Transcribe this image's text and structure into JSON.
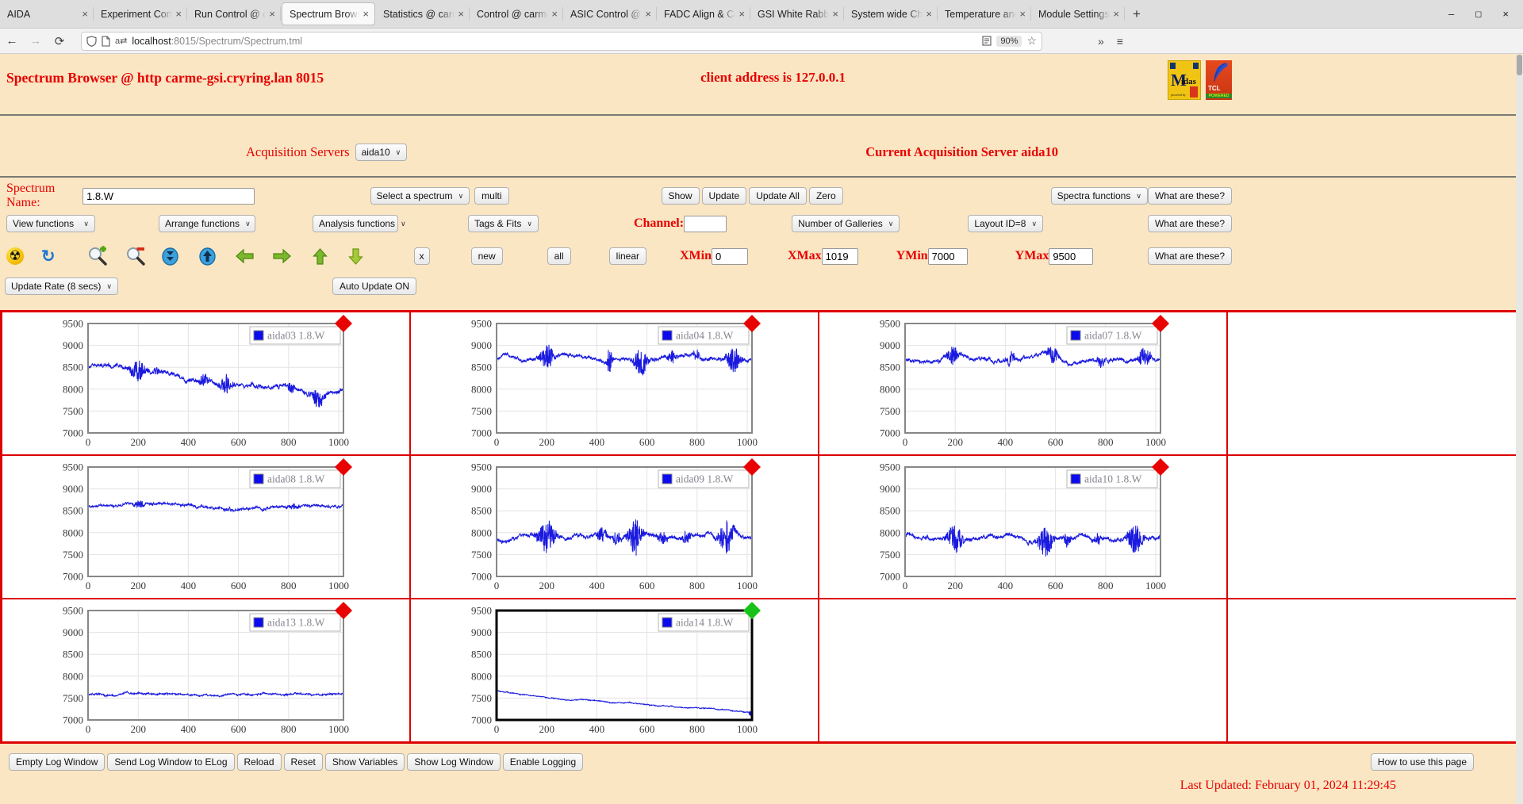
{
  "browser": {
    "tabs": [
      {
        "label": "AIDA",
        "active": false
      },
      {
        "label": "Experiment Cont",
        "active": false
      },
      {
        "label": "Run Control @ c",
        "active": false
      },
      {
        "label": "Spectrum Brows",
        "active": true
      },
      {
        "label": "Statistics @ carm",
        "active": false
      },
      {
        "label": "Control @ carme",
        "active": false
      },
      {
        "label": "ASIC Control @ c",
        "active": false
      },
      {
        "label": "FADC Align & Co",
        "active": false
      },
      {
        "label": "GSI White Rabbit",
        "active": false
      },
      {
        "label": "System wide Che",
        "active": false
      },
      {
        "label": "Temperature and",
        "active": false
      },
      {
        "label": "Module Settings",
        "active": false
      }
    ],
    "url_host": "localhost",
    "url_path": ":8015/Spectrum/Spectrum.tml",
    "zoom_level": "90%"
  },
  "header": {
    "title": "Spectrum Browser @ http carme-gsi.cryring.lan 8015",
    "client": "client address is 127.0.0.1",
    "logos": {
      "midas": "Midas",
      "tcl": "TCL POWERED"
    }
  },
  "server_row": {
    "label": "Acquisition Servers",
    "selected": "aida10",
    "current": "Current Acquisition Server aida10"
  },
  "controls": {
    "spectrum_name_label": "Spectrum Name:",
    "spectrum_name_value": "1.8.W",
    "select_spectrum": "Select a spectrum",
    "multi": "multi",
    "show": "Show",
    "update": "Update",
    "update_all": "Update All",
    "zero": "Zero",
    "spectra_functions": "Spectra functions",
    "what_are_these": "What are these?",
    "view_functions": "View functions",
    "arrange_functions": "Arrange functions",
    "analysis_functions": "Analysis functions",
    "tags_fits": "Tags & Fits",
    "channel_label": "Channel:",
    "channel_value": "",
    "number_of_galleries": "Number of Galleries",
    "layout_id": "Layout ID=8",
    "x_close": "x",
    "new": "new",
    "all": "all",
    "linear": "linear",
    "xmin_label": "XMin",
    "xmin": "0",
    "xmax_label": "XMax",
    "xmax": "1019",
    "ymin_label": "YMin",
    "ymin": "7000",
    "ymax_label": "YMax",
    "ymax": "9500",
    "update_rate": "Update Rate (8 secs)",
    "auto_update": "Auto Update ON"
  },
  "toolbar_icons": [
    "radiation-icon",
    "refresh-icon",
    "zoom-in-icon",
    "zoom-out-icon",
    "compress-y-icon",
    "expand-y-icon",
    "move-left-icon",
    "move-right-icon",
    "move-up-icon",
    "move-down-icon"
  ],
  "footer": {
    "buttons": [
      "Empty Log Window",
      "Send Log Window to ELog",
      "Reload",
      "Reset",
      "Show Variables",
      "Show Log Window",
      "Enable Logging"
    ],
    "help": "How to use this page",
    "last_updated": "Last Updated: February 01, 2024 11:29:45"
  },
  "chart_data": [
    {
      "type": "line",
      "row": 0,
      "col": 0,
      "legend": "aida03 1.8.W",
      "status_marker": "red",
      "selected": false,
      "x_range": [
        0,
        1019
      ],
      "y_range": [
        7000,
        9500
      ],
      "x_ticks": [
        0,
        200,
        400,
        600,
        800,
        1000
      ],
      "y_ticks": [
        7000,
        7500,
        8000,
        8500,
        9000,
        9500
      ],
      "line_color": "#1a1adf",
      "baseline_start": 8490,
      "baseline_end": 7900,
      "noise": 58,
      "power": 1,
      "seed": 31,
      "spikes": [
        {
          "x": 200,
          "w": 30,
          "amp": 230
        },
        {
          "x": 275,
          "w": 12,
          "amp": 120
        },
        {
          "x": 460,
          "w": 16,
          "amp": 170
        },
        {
          "x": 550,
          "w": 22,
          "amp": 210
        },
        {
          "x": 810,
          "w": 14,
          "amp": 140
        },
        {
          "x": 915,
          "w": 30,
          "amp": 190
        }
      ]
    },
    {
      "type": "line",
      "row": 0,
      "col": 1,
      "legend": "aida04 1.8.W",
      "status_marker": "red",
      "selected": false,
      "x_range": [
        0,
        1019
      ],
      "y_range": [
        7000,
        9500
      ],
      "x_ticks": [
        0,
        200,
        400,
        600,
        800,
        1000
      ],
      "y_ticks": [
        7000,
        7500,
        8000,
        8500,
        9000,
        9500
      ],
      "line_color": "#1a1adf",
      "baseline_start": 8700,
      "baseline_end": 8680,
      "noise": 48,
      "power": 1,
      "seed": 42,
      "spikes": [
        {
          "x": 200,
          "w": 26,
          "amp": 290
        },
        {
          "x": 450,
          "w": 10,
          "amp": 340
        },
        {
          "x": 575,
          "w": 26,
          "amp": 310
        },
        {
          "x": 700,
          "w": 16,
          "amp": 140
        },
        {
          "x": 800,
          "w": 14,
          "amp": 130
        },
        {
          "x": 945,
          "w": 26,
          "amp": 300
        }
      ]
    },
    {
      "type": "line",
      "row": 0,
      "col": 2,
      "legend": "aida07 1.8.W",
      "status_marker": "red",
      "selected": false,
      "x_range": [
        0,
        1019
      ],
      "y_range": [
        7000,
        9500
      ],
      "x_ticks": [
        0,
        200,
        400,
        600,
        800,
        1000
      ],
      "y_ticks": [
        7000,
        7500,
        8000,
        8500,
        9000,
        9500
      ],
      "line_color": "#1a1adf",
      "baseline_start": 8680,
      "baseline_end": 8700,
      "noise": 52,
      "power": 1,
      "seed": 77,
      "spikes": [
        {
          "x": 190,
          "w": 22,
          "amp": 210
        },
        {
          "x": 420,
          "w": 16,
          "amp": 180
        },
        {
          "x": 590,
          "w": 20,
          "amp": 210
        },
        {
          "x": 780,
          "w": 14,
          "amp": 150
        },
        {
          "x": 955,
          "w": 24,
          "amp": 220
        }
      ]
    },
    {
      "type": "line",
      "row": 1,
      "col": 0,
      "legend": "aida08 1.8.W",
      "status_marker": "red",
      "selected": false,
      "x_range": [
        0,
        1019
      ],
      "y_range": [
        7000,
        9500
      ],
      "x_ticks": [
        0,
        200,
        400,
        600,
        800,
        1000
      ],
      "y_ticks": [
        7000,
        7500,
        8000,
        8500,
        9000,
        9500
      ],
      "line_color": "#1a1adf",
      "baseline_start": 8600,
      "baseline_end": 8625,
      "noise": 36,
      "power": 1,
      "seed": 88,
      "spikes": [
        {
          "x": 205,
          "w": 24,
          "amp": 90
        },
        {
          "x": 560,
          "w": 16,
          "amp": 55
        },
        {
          "x": 820,
          "w": 20,
          "amp": 70
        }
      ]
    },
    {
      "type": "line",
      "row": 1,
      "col": 1,
      "legend": "aida09 1.8.W",
      "status_marker": "red",
      "selected": false,
      "x_range": [
        0,
        1019
      ],
      "y_range": [
        7000,
        9500
      ],
      "x_ticks": [
        0,
        200,
        400,
        600,
        800,
        1000
      ],
      "y_ticks": [
        7000,
        7500,
        8000,
        8500,
        9000,
        9500
      ],
      "line_color": "#1a1adf",
      "baseline_start": 7880,
      "baseline_end": 7870,
      "noise": 56,
      "power": 1,
      "seed": 93,
      "spikes": [
        {
          "x": 200,
          "w": 32,
          "amp": 390
        },
        {
          "x": 420,
          "w": 18,
          "amp": 190
        },
        {
          "x": 480,
          "w": 14,
          "amp": 160
        },
        {
          "x": 552,
          "w": 26,
          "amp": 430
        },
        {
          "x": 660,
          "w": 18,
          "amp": 170
        },
        {
          "x": 760,
          "w": 18,
          "amp": 160
        },
        {
          "x": 918,
          "w": 28,
          "amp": 430
        }
      ]
    },
    {
      "type": "line",
      "row": 1,
      "col": 2,
      "legend": "aida10 1.8.W",
      "status_marker": "red",
      "selected": false,
      "x_range": [
        0,
        1019
      ],
      "y_range": [
        7000,
        9500
      ],
      "x_ticks": [
        0,
        200,
        400,
        600,
        800,
        1000
      ],
      "y_ticks": [
        7000,
        7500,
        8000,
        8500,
        9000,
        9500
      ],
      "line_color": "#1a1adf",
      "baseline_start": 7900,
      "baseline_end": 7890,
      "noise": 54,
      "power": 1,
      "seed": 104,
      "spikes": [
        {
          "x": 200,
          "w": 28,
          "amp": 340
        },
        {
          "x": 560,
          "w": 26,
          "amp": 390
        },
        {
          "x": 645,
          "w": 16,
          "amp": 170
        },
        {
          "x": 770,
          "w": 14,
          "amp": 140
        },
        {
          "x": 920,
          "w": 28,
          "amp": 390
        }
      ]
    },
    {
      "type": "line",
      "row": 2,
      "col": 0,
      "legend": "aida13 1.8.W",
      "status_marker": "red",
      "selected": false,
      "x_range": [
        0,
        1019
      ],
      "y_range": [
        7000,
        9500
      ],
      "x_ticks": [
        0,
        200,
        400,
        600,
        800,
        1000
      ],
      "y_ticks": [
        7000,
        7500,
        8000,
        8500,
        9000,
        9500
      ],
      "line_color": "#1a1adf",
      "baseline_start": 7570,
      "baseline_end": 7600,
      "noise": 24,
      "power": 1,
      "seed": 133,
      "spikes": []
    },
    {
      "type": "line",
      "row": 2,
      "col": 1,
      "legend": "aida14 1.8.W",
      "status_marker": "green",
      "selected": true,
      "x_range": [
        0,
        1019
      ],
      "y_range": [
        7000,
        9500
      ],
      "x_ticks": [
        0,
        200,
        400,
        600,
        800,
        1000
      ],
      "y_ticks": [
        7000,
        7500,
        8000,
        8500,
        9000,
        9500
      ],
      "line_color": "#1a1adf",
      "baseline_start": 7670,
      "baseline_end": 7170,
      "noise": 13,
      "power": 0.8,
      "seed": 141,
      "spikes": [
        {
          "x": 1012,
          "w": 6,
          "amp": -70
        }
      ]
    }
  ]
}
